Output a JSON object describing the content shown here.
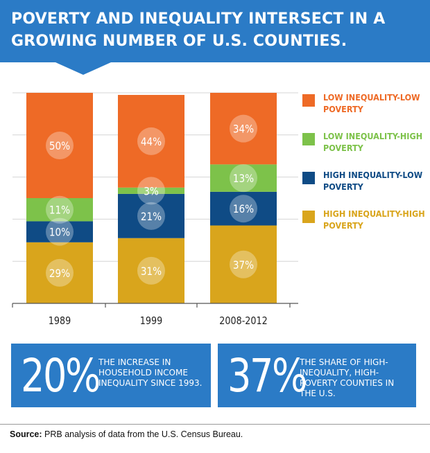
{
  "title": "POVERTY AND INEQUALITY INTERSECT IN A GROWING NUMBER OF U.S. COUNTIES.",
  "colors": {
    "banner": "#2b7bc6",
    "low_inequality_low_poverty": "#ee6a26",
    "low_inequality_high_poverty": "#7dc24a",
    "high_inequality_low_poverty": "#0f4b85",
    "high_inequality_high_poverty": "#d9a51c",
    "stat_box": "#2b7bc6"
  },
  "chart_data": {
    "type": "bar",
    "stacked": true,
    "categories": [
      "1989",
      "1999",
      "2008-2012"
    ],
    "ylim": [
      0,
      100
    ],
    "grid": true,
    "legend_position": "right",
    "series": [
      {
        "name": "HIGH INEQUALITY-HIGH POVERTY",
        "color": "#d9a51c",
        "values": [
          29,
          31,
          37
        ],
        "labels": [
          "29%",
          "31%",
          "37%"
        ]
      },
      {
        "name": "HIGH INEQUALITY-LOW POVERTY",
        "color": "#0f4b85",
        "values": [
          10,
          21,
          16
        ],
        "labels": [
          "10%",
          "21%",
          "16%"
        ]
      },
      {
        "name": "LOW INEQUALITY-HIGH POVERTY",
        "color": "#7dc24a",
        "values": [
          11,
          3,
          13
        ],
        "labels": [
          "11%",
          "3%",
          "13%"
        ]
      },
      {
        "name": "LOW INEQUALITY-LOW POVERTY",
        "color": "#ee6a26",
        "values": [
          50,
          44,
          34
        ],
        "labels": [
          "50%",
          "44%",
          "34%"
        ]
      }
    ]
  },
  "legend": [
    {
      "label": "LOW INEQUALITY-LOW POVERTY",
      "color": "#ee6a26"
    },
    {
      "label": "LOW INEQUALITY-HIGH POVERTY",
      "color": "#7dc24a"
    },
    {
      "label": "HIGH INEQUALITY-LOW POVERTY",
      "color": "#0f4b85"
    },
    {
      "label": "HIGH INEQUALITY-HIGH POVERTY",
      "color": "#d9a51c"
    }
  ],
  "stats": [
    {
      "value": "20%",
      "text": "THE INCREASE IN HOUSEHOLD INCOME INEQUALITY SINCE 1993."
    },
    {
      "value": "37%",
      "text": "THE SHARE OF HIGH-INEQUALITY, HIGH-POVERTY COUNTIES IN THE U.S."
    }
  ],
  "source": {
    "label": "Source:",
    "text": "PRB analysis of data from the U.S. Census Bureau."
  }
}
